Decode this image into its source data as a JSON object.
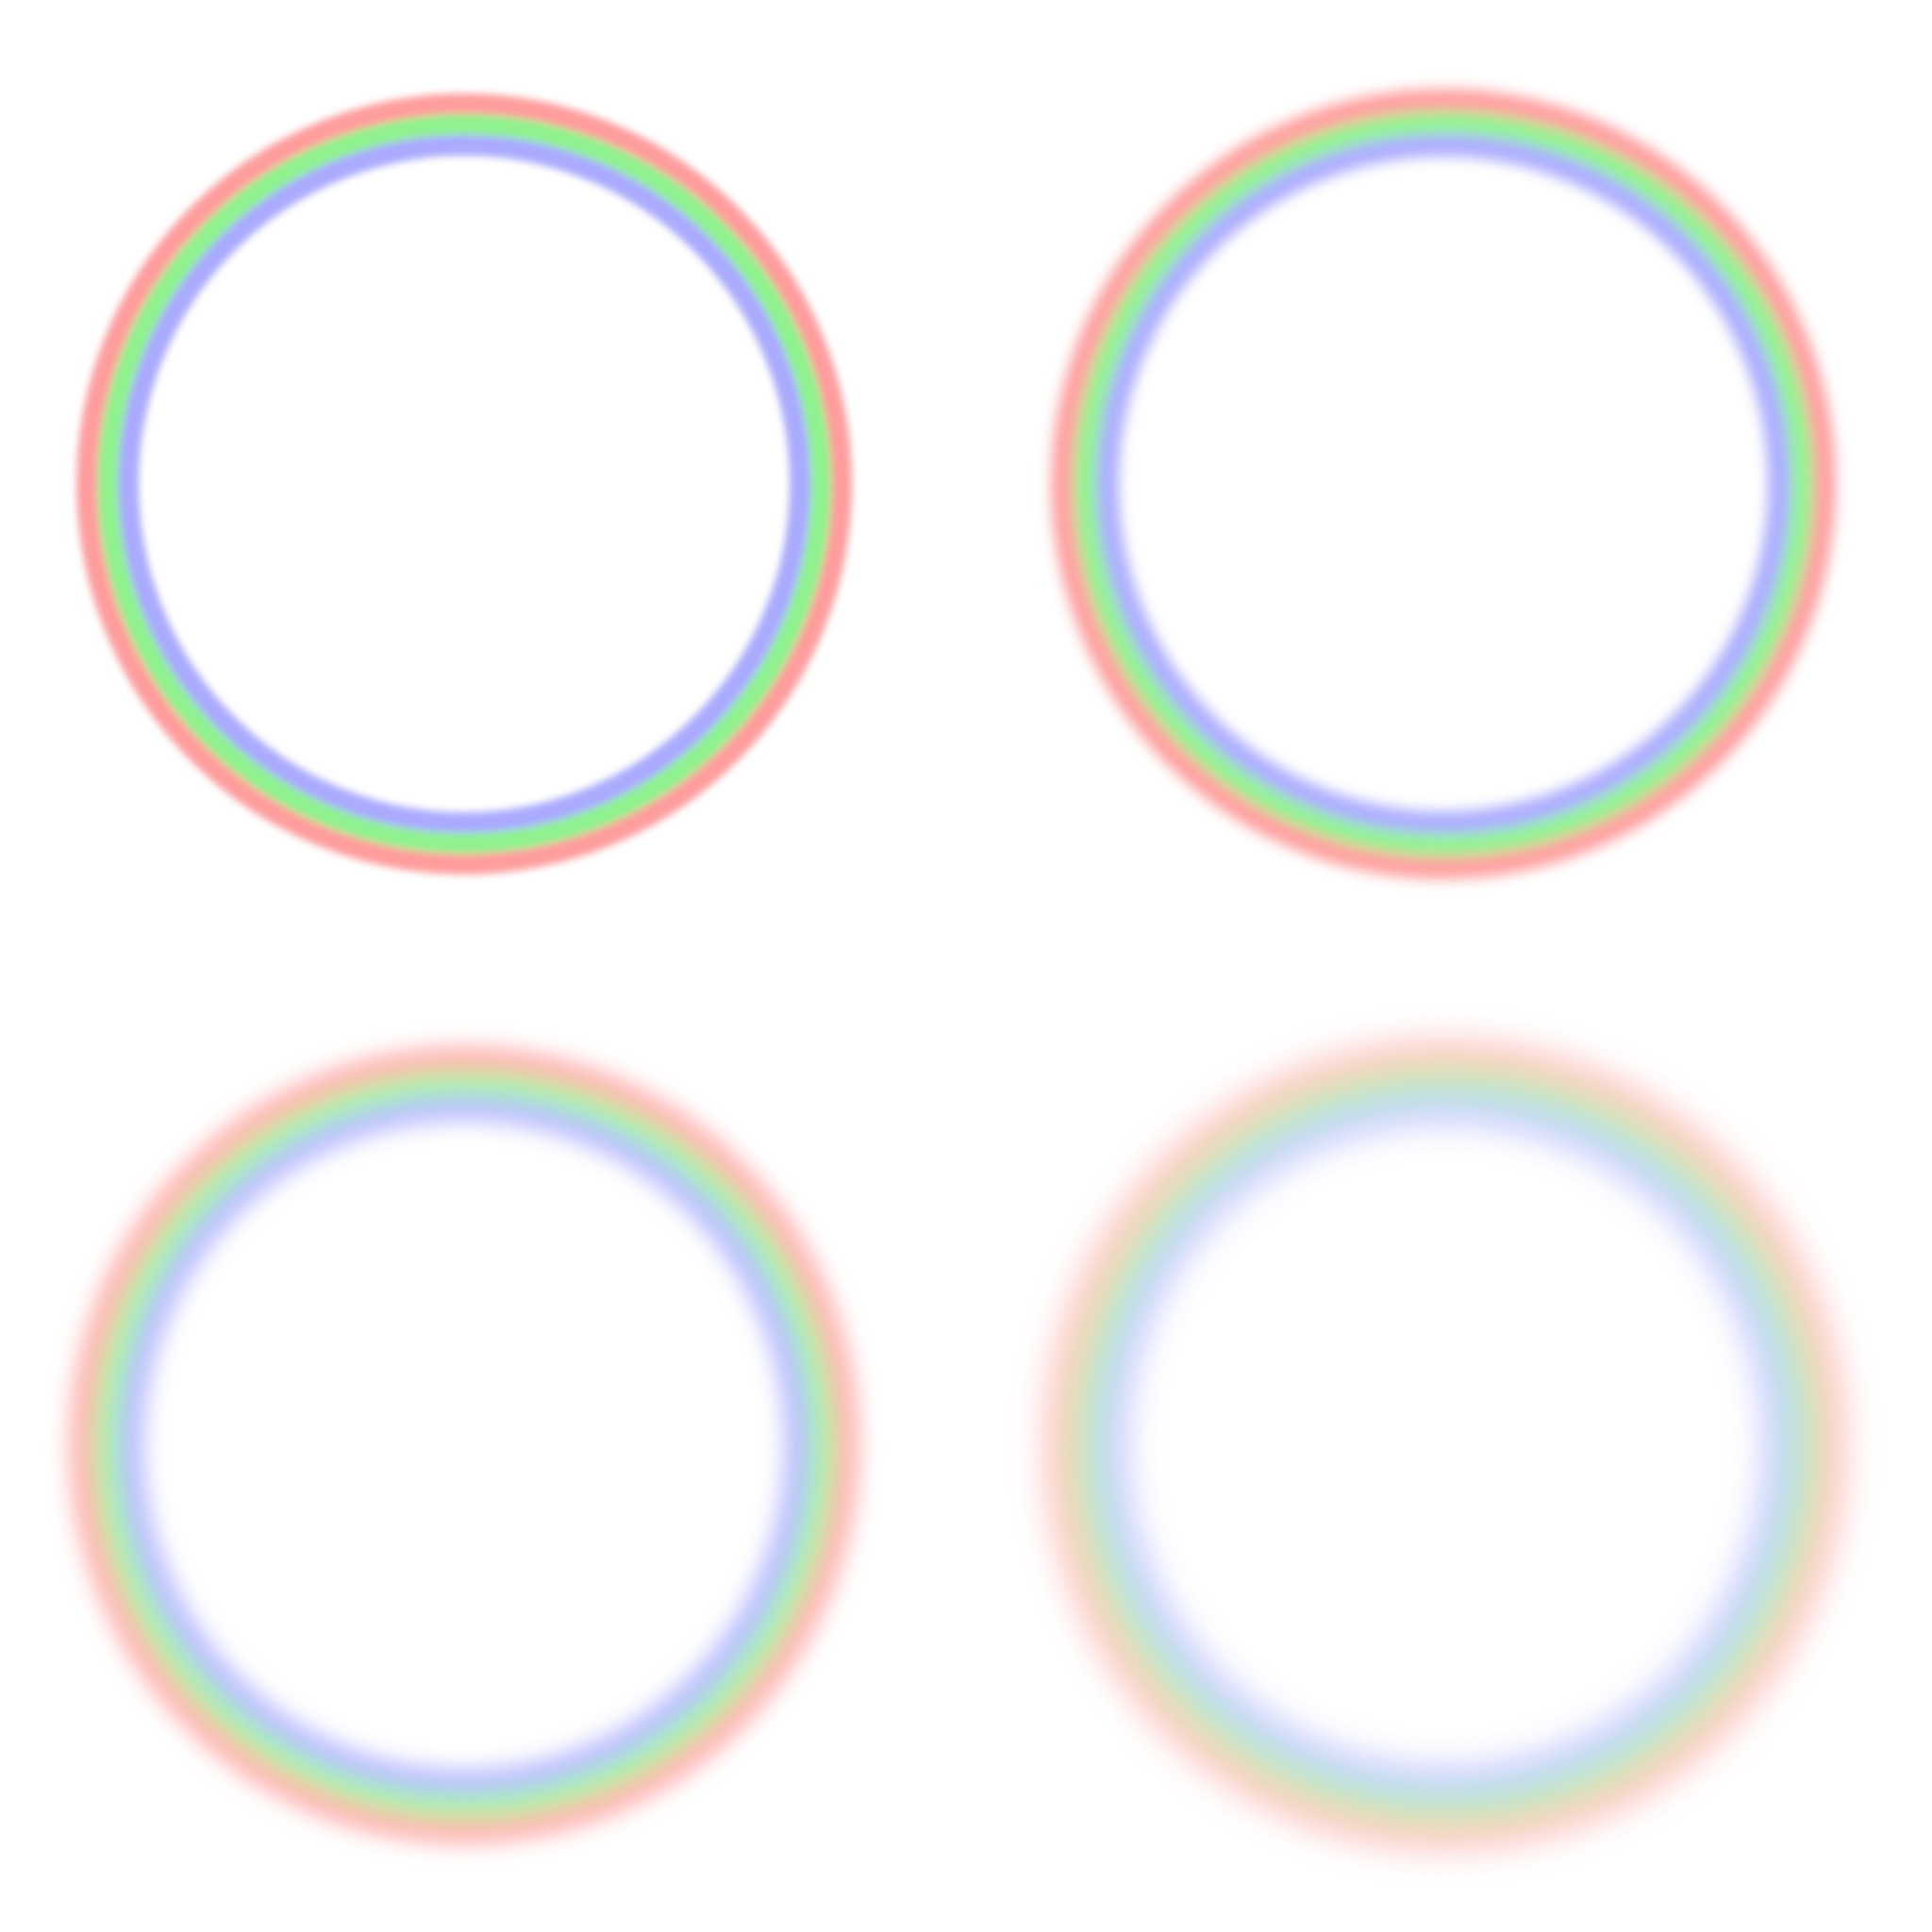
{
  "background": "#ffffff",
  "band_colors": {
    "outer": "#ff8c8c",
    "middle": "#7cf07c",
    "inner": "#9c9cff"
  },
  "rings": [
    {
      "position": "top-left",
      "sharpness": "sharp"
    },
    {
      "position": "top-right",
      "sharpness": "slightly-blurred"
    },
    {
      "position": "bottom-left",
      "sharpness": "blurred"
    },
    {
      "position": "bottom-right",
      "sharpness": "heavily-blurred"
    }
  ]
}
